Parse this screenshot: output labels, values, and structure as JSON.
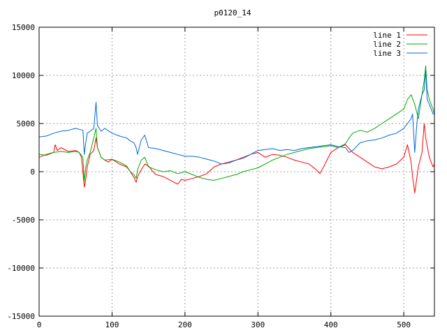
{
  "chart_data": {
    "type": "line",
    "title": "p0120_14",
    "xlabel": "",
    "ylabel": "",
    "xlim": [
      0,
      542
    ],
    "ylim": [
      -15000,
      15000
    ],
    "xticks": [
      0,
      100,
      200,
      300,
      400,
      500
    ],
    "yticks": [
      -15000,
      -10000,
      -5000,
      0,
      5000,
      10000,
      15000
    ],
    "xtick_labels": [
      "0",
      "100",
      "200",
      "300",
      "400",
      "500"
    ],
    "ytick_labels": [
      "-15000",
      "-10000",
      "-5000",
      "0",
      "5000",
      "10000",
      "15000"
    ],
    "grid": true,
    "legend_position": "top-right",
    "series": [
      {
        "name": "line 1",
        "color": "#ff0000",
        "x": [
          0,
          10,
          20,
          22,
          25,
          30,
          40,
          50,
          55,
          58,
          60,
          62,
          64,
          66,
          70,
          75,
          78,
          80,
          85,
          90,
          95,
          100,
          110,
          120,
          125,
          130,
          133,
          135,
          140,
          145,
          150,
          155,
          160,
          170,
          180,
          190,
          195,
          200,
          210,
          220,
          230,
          240,
          250,
          260,
          270,
          280,
          290,
          300,
          310,
          320,
          330,
          340,
          350,
          360,
          370,
          380,
          385,
          390,
          400,
          410,
          420,
          430,
          440,
          450,
          460,
          470,
          480,
          490,
          500,
          505,
          510,
          512,
          515,
          520,
          525,
          528,
          530,
          535,
          540,
          542
        ],
        "y": [
          1500,
          1800,
          2000,
          2800,
          2200,
          2500,
          2100,
          2200,
          2000,
          1500,
          0,
          -1600,
          -800,
          500,
          1800,
          2200,
          3500,
          2500,
          1500,
          1200,
          1000,
          1300,
          800,
          500,
          0,
          -600,
          -1100,
          -500,
          200,
          800,
          600,
          100,
          -300,
          -500,
          -900,
          -1300,
          -800,
          -900,
          -700,
          -500,
          -200,
          500,
          800,
          1000,
          1200,
          1500,
          1800,
          2000,
          1500,
          1800,
          1700,
          1500,
          1200,
          1000,
          800,
          200,
          -200,
          500,
          2000,
          2500,
          2800,
          2000,
          1500,
          1000,
          500,
          300,
          500,
          800,
          1500,
          2800,
          1000,
          -500,
          -2200,
          500,
          2000,
          5000,
          3500,
          1500,
          500,
          800
        ]
      },
      {
        "name": "line 2",
        "color": "#00aa00",
        "x": [
          0,
          10,
          20,
          30,
          40,
          50,
          55,
          60,
          62,
          64,
          66,
          70,
          75,
          78,
          80,
          85,
          90,
          100,
          110,
          120,
          125,
          130,
          133,
          135,
          140,
          145,
          150,
          160,
          170,
          180,
          190,
          200,
          210,
          220,
          230,
          240,
          250,
          260,
          270,
          280,
          290,
          300,
          310,
          320,
          330,
          340,
          350,
          360,
          370,
          380,
          390,
          400,
          410,
          420,
          425,
          430,
          440,
          450,
          460,
          470,
          480,
          490,
          500,
          505,
          510,
          515,
          520,
          525,
          528,
          530,
          532,
          535,
          540,
          542
        ],
        "y": [
          1800,
          1700,
          2000,
          2100,
          2000,
          2100,
          2000,
          1500,
          -1000,
          500,
          1200,
          2000,
          3500,
          4500,
          2500,
          1500,
          1200,
          1300,
          1000,
          600,
          0,
          -300,
          -700,
          200,
          1200,
          1500,
          500,
          200,
          0,
          100,
          -200,
          0,
          -300,
          -600,
          -800,
          -900,
          -700,
          -500,
          -300,
          0,
          200,
          400,
          800,
          1200,
          1500,
          1800,
          2000,
          2200,
          2400,
          2500,
          2600,
          2700,
          2500,
          2900,
          3500,
          4000,
          4300,
          4100,
          4500,
          5000,
          5500,
          6000,
          6500,
          7500,
          8000,
          7000,
          5500,
          8000,
          9500,
          11000,
          8500,
          7500,
          6500,
          6000
        ]
      },
      {
        "name": "line 3",
        "color": "#0066dd",
        "x": [
          0,
          10,
          20,
          30,
          40,
          50,
          55,
          60,
          62,
          64,
          66,
          70,
          75,
          78,
          80,
          85,
          90,
          100,
          110,
          120,
          125,
          130,
          133,
          135,
          140,
          145,
          150,
          160,
          170,
          180,
          190,
          200,
          210,
          220,
          230,
          240,
          250,
          260,
          270,
          280,
          290,
          300,
          310,
          320,
          330,
          340,
          350,
          360,
          370,
          380,
          390,
          400,
          410,
          420,
          425,
          430,
          440,
          450,
          460,
          470,
          480,
          490,
          500,
          505,
          510,
          512,
          515,
          518,
          520,
          525,
          528,
          530,
          532,
          535,
          540,
          542
        ],
        "y": [
          3600,
          3700,
          4000,
          4200,
          4300,
          4500,
          4400,
          4300,
          1800,
          3000,
          4000,
          4200,
          4500,
          7200,
          4800,
          4200,
          4500,
          4000,
          3700,
          3500,
          3200,
          3000,
          2500,
          1800,
          3300,
          3800,
          2500,
          2400,
          2200,
          2000,
          1800,
          1600,
          1600,
          1500,
          1300,
          1100,
          800,
          900,
          1200,
          1400,
          1800,
          2200,
          2300,
          2400,
          2200,
          2300,
          2200,
          2400,
          2500,
          2600,
          2700,
          2800,
          2600,
          2500,
          2000,
          2200,
          3000,
          3200,
          3300,
          3500,
          3800,
          4000,
          4500,
          5000,
          5500,
          6000,
          2000,
          5000,
          6500,
          8000,
          8500,
          10500,
          7500,
          7000,
          6000,
          6000
        ]
      }
    ]
  }
}
